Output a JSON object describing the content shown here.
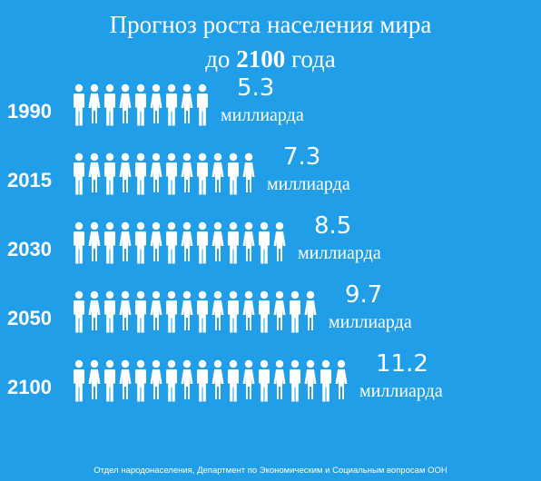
{
  "title_line1": "Прогноз роста населения мира",
  "title_prefix": "до",
  "title_year": "2100",
  "title_suffix": "года",
  "chart_data": {
    "type": "bar",
    "categories": [
      "1990",
      "2015",
      "2030",
      "2050",
      "2100"
    ],
    "values": [
      5.3,
      7.3,
      8.5,
      9.7,
      11.2
    ],
    "value_labels": [
      "5.3",
      "7.3",
      "8.5",
      "9.7",
      "11.2"
    ],
    "unit_label": "миллиарда",
    "icon": "person-icon"
  },
  "source": "Отдел народонаселения, Департмент по Экономическим и Социальным вопросам ООН",
  "colors": {
    "background": "#219ee8",
    "text": "#ffffff",
    "icon": "#ffffff"
  }
}
